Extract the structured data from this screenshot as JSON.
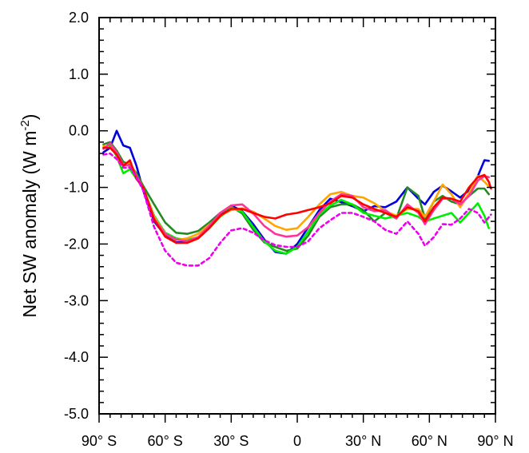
{
  "chart_data": {
    "type": "line",
    "title": "",
    "xlabel": "",
    "ylabel": "Net SW anomaly (W m",
    "ylabel_sup": "-2",
    "ylabel_close": ")",
    "xlim": [
      -90,
      90
    ],
    "ylim": [
      -5,
      2
    ],
    "grid": false,
    "legend": "none",
    "x_ticks": [
      {
        "value": -90,
        "label": "90° S"
      },
      {
        "value": -60,
        "label": "60° S"
      },
      {
        "value": -30,
        "label": "30° S"
      },
      {
        "value": 0,
        "label": "0"
      },
      {
        "value": 30,
        "label": "30° N"
      },
      {
        "value": 60,
        "label": "60° N"
      },
      {
        "value": 90,
        "label": "90° N"
      }
    ],
    "y_ticks": [
      {
        "value": 2,
        "label": "2.0"
      },
      {
        "value": 1,
        "label": "1.0"
      },
      {
        "value": 0,
        "label": "0.0"
      },
      {
        "value": -1,
        "label": "-1.0"
      },
      {
        "value": -2,
        "label": "-2.0"
      },
      {
        "value": -3,
        "label": "-3.0"
      },
      {
        "value": -4,
        "label": "-4.0"
      },
      {
        "value": -5,
        "label": "-5.0"
      }
    ],
    "x_minor_step": 5,
    "y_minor_step": 0.2,
    "series": [
      {
        "color": "#0000dd",
        "dash": false,
        "points": [
          [
            -88,
            -0.38
          ],
          [
            -85,
            -0.3
          ],
          [
            -82,
            0.0
          ],
          [
            -79,
            -0.26
          ],
          [
            -76,
            -0.3
          ],
          [
            -73,
            -0.62
          ],
          [
            -70,
            -1.05
          ],
          [
            -65,
            -1.6
          ],
          [
            -60,
            -1.85
          ],
          [
            -55,
            -1.97
          ],
          [
            -50,
            -1.97
          ],
          [
            -45,
            -1.9
          ],
          [
            -40,
            -1.72
          ],
          [
            -35,
            -1.48
          ],
          [
            -30,
            -1.32
          ],
          [
            -25,
            -1.42
          ],
          [
            -20,
            -1.65
          ],
          [
            -15,
            -1.92
          ],
          [
            -10,
            -2.14
          ],
          [
            -5,
            -2.17
          ],
          [
            0,
            -2.0
          ],
          [
            5,
            -1.7
          ],
          [
            10,
            -1.4
          ],
          [
            15,
            -1.2
          ],
          [
            20,
            -1.26
          ],
          [
            25,
            -1.33
          ],
          [
            30,
            -1.42
          ],
          [
            35,
            -1.33
          ],
          [
            40,
            -1.35
          ],
          [
            45,
            -1.25
          ],
          [
            50,
            -1.0
          ],
          [
            55,
            -1.2
          ],
          [
            58,
            -1.3
          ],
          [
            62,
            -1.08
          ],
          [
            66,
            -0.97
          ],
          [
            70,
            -1.07
          ],
          [
            74,
            -1.18
          ],
          [
            78,
            -1.05
          ],
          [
            82,
            -0.8
          ],
          [
            85,
            -0.52
          ],
          [
            87,
            -0.53
          ]
        ]
      },
      {
        "color": "#228b22",
        "dash": false,
        "points": [
          [
            -88,
            -0.24
          ],
          [
            -85,
            -0.2
          ],
          [
            -82,
            -0.35
          ],
          [
            -79,
            -0.55
          ],
          [
            -76,
            -0.6
          ],
          [
            -73,
            -0.75
          ],
          [
            -70,
            -0.97
          ],
          [
            -65,
            -1.3
          ],
          [
            -60,
            -1.62
          ],
          [
            -55,
            -1.8
          ],
          [
            -50,
            -1.82
          ],
          [
            -45,
            -1.77
          ],
          [
            -40,
            -1.62
          ],
          [
            -35,
            -1.45
          ],
          [
            -30,
            -1.34
          ],
          [
            -25,
            -1.46
          ],
          [
            -20,
            -1.75
          ],
          [
            -15,
            -1.97
          ],
          [
            -10,
            -2.05
          ],
          [
            -5,
            -2.12
          ],
          [
            0,
            -2.08
          ],
          [
            5,
            -1.85
          ],
          [
            10,
            -1.52
          ],
          [
            15,
            -1.35
          ],
          [
            20,
            -1.3
          ],
          [
            25,
            -1.3
          ],
          [
            30,
            -1.4
          ],
          [
            35,
            -1.6
          ],
          [
            40,
            -1.45
          ],
          [
            45,
            -1.55
          ],
          [
            50,
            -1.0
          ],
          [
            55,
            -1.15
          ],
          [
            58,
            -1.55
          ],
          [
            62,
            -1.25
          ],
          [
            66,
            -1.15
          ],
          [
            70,
            -1.25
          ],
          [
            74,
            -1.3
          ],
          [
            78,
            -1.15
          ],
          [
            82,
            -1.02
          ],
          [
            85,
            -1.02
          ],
          [
            87,
            -1.12
          ]
        ]
      },
      {
        "color": "#00ee00",
        "dash": false,
        "points": [
          [
            -88,
            -0.3
          ],
          [
            -85,
            -0.25
          ],
          [
            -82,
            -0.45
          ],
          [
            -79,
            -0.75
          ],
          [
            -76,
            -0.68
          ],
          [
            -73,
            -0.85
          ],
          [
            -70,
            -1.0
          ],
          [
            -65,
            -1.5
          ],
          [
            -60,
            -1.8
          ],
          [
            -55,
            -1.9
          ],
          [
            -50,
            -1.93
          ],
          [
            -45,
            -1.88
          ],
          [
            -40,
            -1.72
          ],
          [
            -35,
            -1.52
          ],
          [
            -30,
            -1.36
          ],
          [
            -25,
            -1.43
          ],
          [
            -20,
            -1.7
          ],
          [
            -15,
            -1.95
          ],
          [
            -10,
            -2.12
          ],
          [
            -5,
            -2.17
          ],
          [
            0,
            -2.05
          ],
          [
            5,
            -1.78
          ],
          [
            10,
            -1.48
          ],
          [
            15,
            -1.32
          ],
          [
            20,
            -1.22
          ],
          [
            25,
            -1.3
          ],
          [
            30,
            -1.45
          ],
          [
            35,
            -1.5
          ],
          [
            40,
            -1.55
          ],
          [
            45,
            -1.5
          ],
          [
            50,
            -1.45
          ],
          [
            55,
            -1.52
          ],
          [
            58,
            -1.6
          ],
          [
            62,
            -1.55
          ],
          [
            66,
            -1.5
          ],
          [
            70,
            -1.45
          ],
          [
            74,
            -1.62
          ],
          [
            78,
            -1.45
          ],
          [
            82,
            -1.28
          ],
          [
            85,
            -1.5
          ],
          [
            87,
            -1.72
          ]
        ]
      },
      {
        "color": "#ffa500",
        "dash": false,
        "points": [
          [
            -88,
            -0.27
          ],
          [
            -85,
            -0.3
          ],
          [
            -82,
            -0.42
          ],
          [
            -79,
            -0.62
          ],
          [
            -76,
            -0.55
          ],
          [
            -73,
            -0.8
          ],
          [
            -70,
            -1.0
          ],
          [
            -65,
            -1.52
          ],
          [
            -60,
            -1.82
          ],
          [
            -55,
            -1.93
          ],
          [
            -50,
            -1.9
          ],
          [
            -45,
            -1.82
          ],
          [
            -40,
            -1.66
          ],
          [
            -35,
            -1.5
          ],
          [
            -30,
            -1.4
          ],
          [
            -25,
            -1.37
          ],
          [
            -20,
            -1.43
          ],
          [
            -15,
            -1.55
          ],
          [
            -10,
            -1.68
          ],
          [
            -5,
            -1.75
          ],
          [
            0,
            -1.72
          ],
          [
            5,
            -1.52
          ],
          [
            10,
            -1.3
          ],
          [
            15,
            -1.12
          ],
          [
            20,
            -1.08
          ],
          [
            25,
            -1.15
          ],
          [
            30,
            -1.18
          ],
          [
            35,
            -1.28
          ],
          [
            40,
            -1.42
          ],
          [
            45,
            -1.5
          ],
          [
            50,
            -1.38
          ],
          [
            55,
            -1.38
          ],
          [
            58,
            -1.52
          ],
          [
            62,
            -1.25
          ],
          [
            66,
            -0.95
          ],
          [
            70,
            -1.12
          ],
          [
            74,
            -1.35
          ],
          [
            78,
            -1.1
          ],
          [
            82,
            -0.8
          ],
          [
            85,
            -0.9
          ],
          [
            87,
            -0.98
          ]
        ]
      },
      {
        "color": "#ff3399",
        "dash": false,
        "points": [
          [
            -88,
            -0.32
          ],
          [
            -85,
            -0.22
          ],
          [
            -82,
            -0.38
          ],
          [
            -79,
            -0.6
          ],
          [
            -76,
            -0.62
          ],
          [
            -73,
            -0.8
          ],
          [
            -70,
            -1.0
          ],
          [
            -65,
            -1.55
          ],
          [
            -60,
            -1.82
          ],
          [
            -55,
            -1.92
          ],
          [
            -50,
            -1.95
          ],
          [
            -45,
            -1.88
          ],
          [
            -40,
            -1.68
          ],
          [
            -35,
            -1.45
          ],
          [
            -30,
            -1.32
          ],
          [
            -25,
            -1.3
          ],
          [
            -20,
            -1.46
          ],
          [
            -15,
            -1.68
          ],
          [
            -10,
            -1.82
          ],
          [
            -5,
            -1.87
          ],
          [
            0,
            -1.85
          ],
          [
            5,
            -1.7
          ],
          [
            10,
            -1.45
          ],
          [
            15,
            -1.25
          ],
          [
            20,
            -1.12
          ],
          [
            25,
            -1.15
          ],
          [
            30,
            -1.35
          ],
          [
            35,
            -1.42
          ],
          [
            40,
            -1.4
          ],
          [
            45,
            -1.55
          ],
          [
            50,
            -1.3
          ],
          [
            55,
            -1.45
          ],
          [
            58,
            -1.65
          ],
          [
            62,
            -1.4
          ],
          [
            66,
            -1.2
          ],
          [
            70,
            -1.2
          ],
          [
            74,
            -1.3
          ],
          [
            78,
            -1.15
          ],
          [
            82,
            -0.88
          ],
          [
            85,
            -0.8
          ],
          [
            87,
            -0.82
          ]
        ]
      },
      {
        "color": "#ff0000",
        "dash": false,
        "points": [
          [
            -88,
            -0.3
          ],
          [
            -85,
            -0.3
          ],
          [
            -82,
            -0.42
          ],
          [
            -79,
            -0.62
          ],
          [
            -76,
            -0.52
          ],
          [
            -73,
            -0.85
          ],
          [
            -70,
            -1.0
          ],
          [
            -65,
            -1.57
          ],
          [
            -60,
            -1.87
          ],
          [
            -55,
            -1.98
          ],
          [
            -50,
            -1.98
          ],
          [
            -45,
            -1.9
          ],
          [
            -40,
            -1.72
          ],
          [
            -35,
            -1.5
          ],
          [
            -30,
            -1.38
          ],
          [
            -25,
            -1.38
          ],
          [
            -20,
            -1.45
          ],
          [
            -15,
            -1.52
          ],
          [
            -10,
            -1.55
          ],
          [
            -5,
            -1.48
          ],
          [
            0,
            -1.45
          ],
          [
            5,
            -1.4
          ],
          [
            10,
            -1.35
          ],
          [
            15,
            -1.28
          ],
          [
            20,
            -1.15
          ],
          [
            25,
            -1.18
          ],
          [
            30,
            -1.3
          ],
          [
            35,
            -1.38
          ],
          [
            40,
            -1.45
          ],
          [
            45,
            -1.52
          ],
          [
            50,
            -1.35
          ],
          [
            55,
            -1.42
          ],
          [
            58,
            -1.6
          ],
          [
            62,
            -1.35
          ],
          [
            66,
            -1.18
          ],
          [
            70,
            -1.2
          ],
          [
            74,
            -1.25
          ],
          [
            78,
            -1.0
          ],
          [
            82,
            -0.82
          ],
          [
            85,
            -0.78
          ],
          [
            87,
            -0.9
          ],
          [
            88,
            -1.02
          ]
        ]
      },
      {
        "color": "#ee00ee",
        "dash": true,
        "points": [
          [
            -88,
            -0.42
          ],
          [
            -85,
            -0.4
          ],
          [
            -82,
            -0.5
          ],
          [
            -79,
            -0.65
          ],
          [
            -76,
            -0.65
          ],
          [
            -73,
            -0.82
          ],
          [
            -70,
            -1.05
          ],
          [
            -65,
            -1.7
          ],
          [
            -60,
            -2.12
          ],
          [
            -55,
            -2.33
          ],
          [
            -50,
            -2.38
          ],
          [
            -45,
            -2.38
          ],
          [
            -40,
            -2.25
          ],
          [
            -35,
            -1.98
          ],
          [
            -30,
            -1.76
          ],
          [
            -25,
            -1.72
          ],
          [
            -20,
            -1.8
          ],
          [
            -15,
            -1.93
          ],
          [
            -10,
            -2.02
          ],
          [
            -5,
            -2.05
          ],
          [
            0,
            -2.05
          ],
          [
            5,
            -1.95
          ],
          [
            10,
            -1.72
          ],
          [
            15,
            -1.58
          ],
          [
            20,
            -1.45
          ],
          [
            25,
            -1.45
          ],
          [
            30,
            -1.52
          ],
          [
            35,
            -1.6
          ],
          [
            40,
            -1.75
          ],
          [
            45,
            -1.82
          ],
          [
            50,
            -1.6
          ],
          [
            55,
            -1.82
          ],
          [
            58,
            -2.03
          ],
          [
            62,
            -1.88
          ],
          [
            66,
            -1.65
          ],
          [
            70,
            -1.66
          ],
          [
            74,
            -1.55
          ],
          [
            78,
            -1.38
          ],
          [
            82,
            -1.45
          ],
          [
            85,
            -1.62
          ],
          [
            88,
            -1.48
          ]
        ]
      }
    ]
  }
}
